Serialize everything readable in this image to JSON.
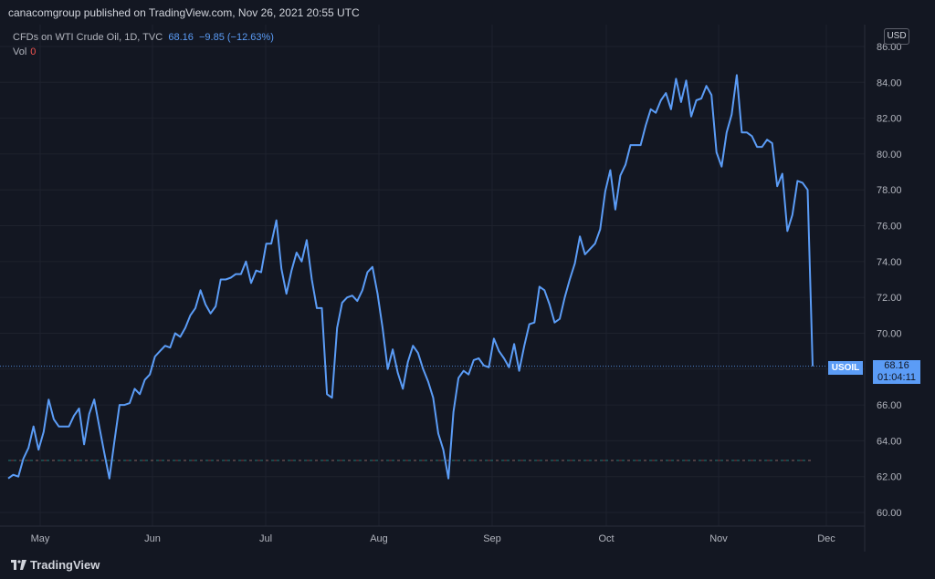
{
  "header": {
    "published": "canacomgroup published on TradingView.com, Nov 26, 2021 20:55 UTC"
  },
  "legend": {
    "symbol_desc": "CFDs on WTI Crude Oil, 1D, TVC",
    "last": "68.16",
    "change": "−9.85 (−12.63%)",
    "vol_label": "Vol",
    "vol_value": "0"
  },
  "currency": "USD",
  "symbol_tag": "USOIL",
  "price_tag": {
    "price": "68.16",
    "countdown": "01:04:11"
  },
  "brand": "TradingView",
  "colors": {
    "background": "#131722",
    "line": "#5b9cf6",
    "grid": "#1e222d",
    "axis_text": "#b2b5be"
  },
  "chart_data": {
    "type": "line",
    "title": "CFDs on WTI Crude Oil, 1D, TVC",
    "ylim": [
      59,
      87
    ],
    "y_ticks": [
      "60.00",
      "62.00",
      "64.00",
      "66.00",
      "68.00",
      "70.00",
      "72.00",
      "74.00",
      "76.00",
      "78.00",
      "80.00",
      "82.00",
      "84.00",
      "86.00"
    ],
    "x_ticks": [
      "May",
      "Jun",
      "Jul",
      "Aug",
      "Sep",
      "Oct",
      "Nov",
      "Dec"
    ],
    "grid": true,
    "last_price_line": 68.16,
    "reference_line": 62.9,
    "series": [
      {
        "values": [
          61.9,
          62.1,
          62.0,
          63.0,
          63.6,
          64.8,
          63.5,
          64.5,
          66.3,
          65.2,
          64.8,
          64.8,
          64.8,
          65.4,
          65.8,
          63.8,
          65.5,
          66.3,
          64.8,
          63.3,
          61.9,
          64.0,
          66.0,
          66.0,
          66.1,
          66.9,
          66.6,
          67.4,
          67.7,
          68.7,
          69.0,
          69.3,
          69.2,
          70.0,
          69.8,
          70.3,
          71.0,
          71.4,
          72.4,
          71.6,
          71.1,
          71.5,
          73.0,
          73.0,
          73.1,
          73.3,
          73.3,
          74.0,
          72.8,
          73.5,
          73.4,
          75.0,
          75.0,
          76.3,
          73.6,
          72.2,
          73.5,
          74.5,
          74.0,
          75.2,
          73.0,
          71.4,
          71.4,
          66.6,
          66.4,
          70.3,
          71.7,
          72.0,
          72.1,
          71.8,
          72.4,
          73.4,
          73.7,
          72.2,
          70.3,
          68.0,
          69.1,
          67.8,
          66.9,
          68.4,
          69.3,
          68.9,
          68.0,
          67.3,
          66.4,
          64.4,
          63.5,
          61.9,
          65.6,
          67.5,
          67.9,
          67.7,
          68.5,
          68.6,
          68.2,
          68.1,
          69.7,
          69.0,
          68.6,
          68.1,
          69.4,
          67.9,
          69.3,
          70.5,
          70.6,
          72.6,
          72.4,
          71.6,
          70.6,
          70.8,
          72.0,
          73.0,
          73.9,
          75.4,
          74.4,
          74.7,
          75.0,
          75.8,
          77.9,
          79.1,
          76.9,
          78.8,
          79.4,
          80.5,
          80.5,
          80.5,
          81.6,
          82.5,
          82.3,
          83.0,
          83.4,
          82.5,
          84.2,
          82.9,
          84.1,
          82.1,
          83.0,
          83.1,
          83.8,
          83.3,
          80.1,
          79.3,
          81.2,
          82.2,
          84.4,
          81.2,
          81.2,
          81.0,
          80.4,
          80.4,
          80.8,
          80.6,
          78.2,
          78.9,
          75.7,
          76.6,
          78.5,
          78.4,
          78.0,
          68.16
        ]
      }
    ]
  }
}
